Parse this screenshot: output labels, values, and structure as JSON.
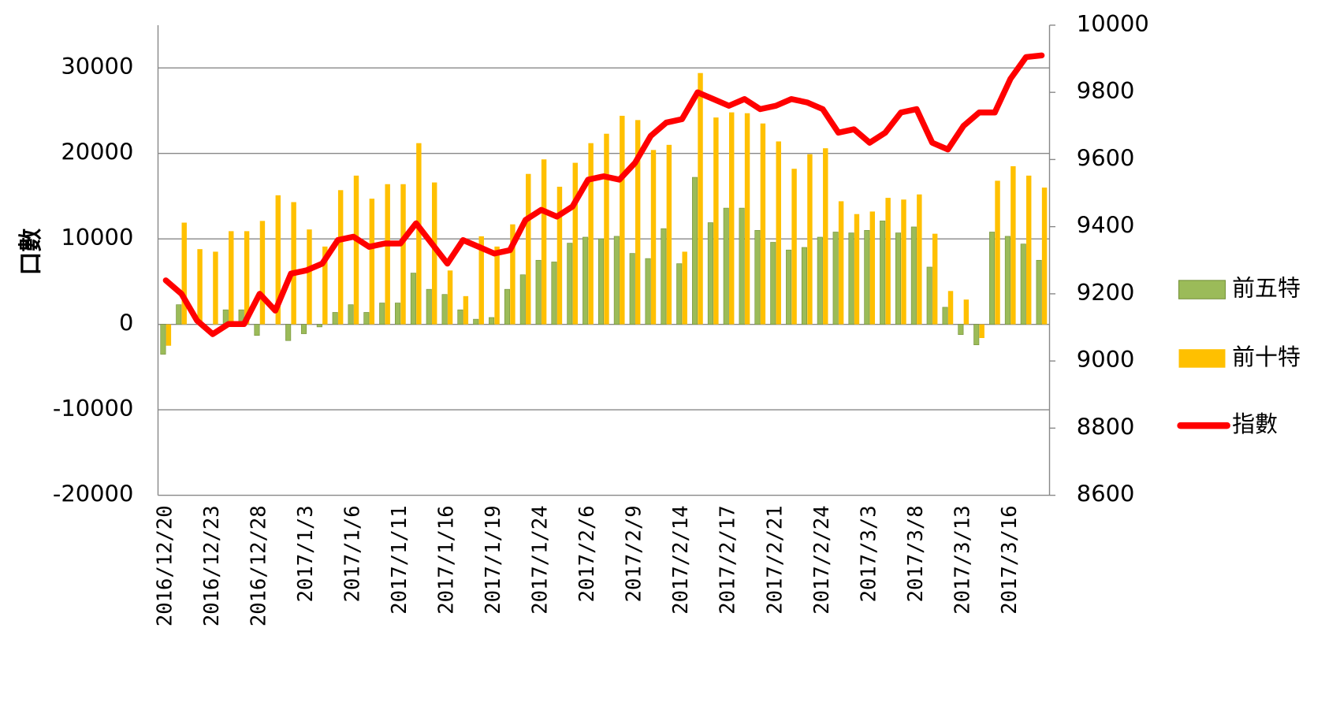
{
  "chart_data": {
    "type": "bar",
    "y_label": "口數",
    "categories": [
      "2016/12/20",
      null,
      null,
      "2016/12/23",
      null,
      null,
      "2016/12/28",
      null,
      null,
      "2017/1/3",
      null,
      null,
      "2017/1/6",
      null,
      null,
      "2017/1/11",
      null,
      null,
      "2017/1/16",
      null,
      null,
      "2017/1/19",
      null,
      null,
      "2017/1/24",
      null,
      null,
      "2017/2/6",
      null,
      null,
      "2017/2/9",
      null,
      null,
      "2017/2/14",
      null,
      null,
      "2017/2/17",
      null,
      null,
      "2017/2/21",
      null,
      null,
      "2017/2/24",
      null,
      null,
      "2017/3/3",
      null,
      null,
      "2017/3/8",
      null,
      null,
      "2017/3/13",
      null,
      null,
      "2017/3/16",
      null,
      null
    ],
    "series": [
      {
        "name": "前五特",
        "type": "bar",
        "color": "#9bbb59",
        "values": [
          -3500,
          2300,
          0,
          0,
          1700,
          1700,
          -1300,
          0,
          -1900,
          -1100,
          -300,
          1400,
          2300,
          1400,
          2500,
          2500,
          6000,
          4100,
          3500,
          1700,
          600,
          800,
          4100,
          5800,
          7500,
          7300,
          9500,
          10200,
          10000,
          10300,
          8300,
          7700,
          11200,
          7100,
          17200,
          11900,
          13600,
          13600,
          11000,
          9600,
          8700,
          9000,
          10200,
          10800,
          10700,
          11000,
          12100,
          10700,
          11400,
          6700,
          2000,
          -1200,
          -2400,
          10800,
          10300,
          9400,
          7500
        ]
      },
      {
        "name": "前十特",
        "type": "bar",
        "color": "#ffc000",
        "values": [
          -2500,
          11900,
          8800,
          8500,
          10900,
          10900,
          12100,
          15100,
          14300,
          11100,
          9100,
          15700,
          17400,
          14700,
          16400,
          16400,
          21200,
          16600,
          6300,
          3300,
          10300,
          9100,
          11700,
          17600,
          19300,
          16100,
          18900,
          21200,
          22300,
          24400,
          23900,
          20400,
          21000,
          8500,
          29400,
          24200,
          24800,
          24700,
          23500,
          21400,
          18200,
          19900,
          20600,
          14400,
          12900,
          13200,
          14800,
          14600,
          15200,
          10600,
          3900,
          2900,
          -1600,
          16800,
          18500,
          17400,
          16000
        ]
      },
      {
        "name": "指數",
        "type": "line",
        "axis": "y2",
        "color": "#ff0000",
        "values": [
          9240,
          9200,
          9120,
          9080,
          9110,
          9110,
          9200,
          9150,
          9260,
          9270,
          9290,
          9360,
          9370,
          9340,
          9350,
          9350,
          9410,
          9350,
          9290,
          9360,
          9340,
          9320,
          9330,
          9420,
          9450,
          9430,
          9460,
          9540,
          9550,
          9540,
          9590,
          9670,
          9710,
          9720,
          9800,
          9780,
          9760,
          9780,
          9750,
          9760,
          9780,
          9770,
          9750,
          9680,
          9690,
          9650,
          9680,
          9740,
          9750,
          9650,
          9630,
          9700,
          9740,
          9740,
          9840,
          9905,
          9910
        ]
      }
    ],
    "ylim": [
      -20000,
      35000
    ],
    "yticks": [
      -20000,
      -10000,
      0,
      10000,
      20000,
      30000
    ],
    "y2lim": [
      8600,
      10000
    ],
    "y2ticks": [
      8600,
      8800,
      9000,
      9200,
      9400,
      9600,
      9800,
      10000
    ],
    "grid": true,
    "legend": "right"
  }
}
